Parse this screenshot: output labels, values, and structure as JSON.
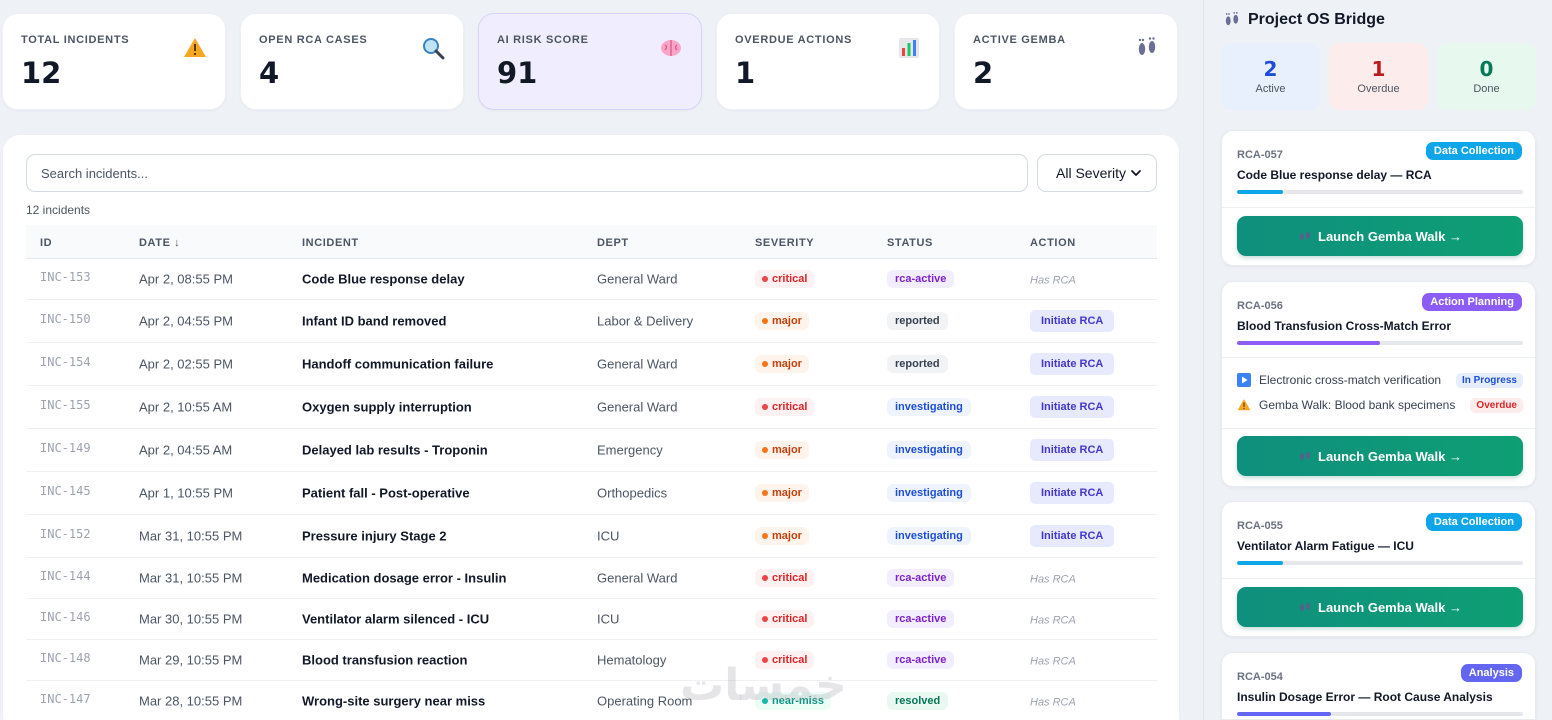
{
  "kpis": [
    {
      "label": "TOTAL INCIDENTS",
      "value": "12",
      "icon": "warning-icon"
    },
    {
      "label": "OPEN RCA CASES",
      "value": "4",
      "icon": "magnifier-icon"
    },
    {
      "label": "AI RISK SCORE",
      "value": "91",
      "icon": "brain-icon"
    },
    {
      "label": "OVERDUE ACTIONS",
      "value": "1",
      "icon": "bar-chart-icon"
    },
    {
      "label": "ACTIVE GEMBA",
      "value": "2",
      "icon": "footprints-icon"
    }
  ],
  "incidents_panel": {
    "search_placeholder": "Search incidents...",
    "severity_filter": "All Severity",
    "count_text": "12 incidents",
    "columns": {
      "id": "ID",
      "date": "DATE ↓",
      "incident": "INCIDENT",
      "dept": "DEPT",
      "severity": "SEVERITY",
      "status": "STATUS",
      "action": "ACTION"
    },
    "rows": [
      {
        "id": "INC-153",
        "date": "Apr 2, 08:55 PM",
        "incident": "Code Blue response delay",
        "dept": "General Ward",
        "severity": "critical",
        "status": "rca-active",
        "action": "Has RCA"
      },
      {
        "id": "INC-150",
        "date": "Apr 2, 04:55 PM",
        "incident": "Infant ID band removed",
        "dept": "Labor & Delivery",
        "severity": "major",
        "status": "reported",
        "action": "Initiate RCA"
      },
      {
        "id": "INC-154",
        "date": "Apr 2, 02:55 PM",
        "incident": "Handoff communication failure",
        "dept": "General Ward",
        "severity": "major",
        "status": "reported",
        "action": "Initiate RCA"
      },
      {
        "id": "INC-155",
        "date": "Apr 2, 10:55 AM",
        "incident": "Oxygen supply interruption",
        "dept": "General Ward",
        "severity": "critical",
        "status": "investigating",
        "action": "Initiate RCA"
      },
      {
        "id": "INC-149",
        "date": "Apr 2, 04:55 AM",
        "incident": "Delayed lab results - Troponin",
        "dept": "Emergency",
        "severity": "major",
        "status": "investigating",
        "action": "Initiate RCA"
      },
      {
        "id": "INC-145",
        "date": "Apr 1, 10:55 PM",
        "incident": "Patient fall - Post-operative",
        "dept": "Orthopedics",
        "severity": "major",
        "status": "investigating",
        "action": "Initiate RCA"
      },
      {
        "id": "INC-152",
        "date": "Mar 31, 10:55 PM",
        "incident": "Pressure injury Stage 2",
        "dept": "ICU",
        "severity": "major",
        "status": "investigating",
        "action": "Initiate RCA"
      },
      {
        "id": "INC-144",
        "date": "Mar 31, 10:55 PM",
        "incident": "Medication dosage error - Insulin",
        "dept": "General Ward",
        "severity": "critical",
        "status": "rca-active",
        "action": "Has RCA"
      },
      {
        "id": "INC-146",
        "date": "Mar 30, 10:55 PM",
        "incident": "Ventilator alarm silenced - ICU",
        "dept": "ICU",
        "severity": "critical",
        "status": "rca-active",
        "action": "Has RCA"
      },
      {
        "id": "INC-148",
        "date": "Mar 29, 10:55 PM",
        "incident": "Blood transfusion reaction",
        "dept": "Hematology",
        "severity": "critical",
        "status": "rca-active",
        "action": "Has RCA"
      },
      {
        "id": "INC-147",
        "date": "Mar 28, 10:55 PM",
        "incident": "Wrong-site surgery near miss",
        "dept": "Operating Room",
        "severity": "near-miss",
        "status": "resolved",
        "action": "Has RCA"
      }
    ]
  },
  "watermark": "خمسات",
  "bridge": {
    "title": "Project OS Bridge",
    "stats": [
      {
        "value": "2",
        "label": "Active"
      },
      {
        "value": "1",
        "label": "Overdue"
      },
      {
        "value": "0",
        "label": "Done"
      }
    ],
    "launch_label": "Launch Gemba Walk →",
    "cards": [
      {
        "id": "RCA-057",
        "badge": "Data Collection",
        "title": "Code Blue response delay — RCA",
        "progress": 0.16
      },
      {
        "id": "RCA-056",
        "badge": "Action Planning",
        "title": "Blood Transfusion Cross-Match Error",
        "progress": 0.5,
        "tasks": [
          {
            "text": "Electronic cross-match verification",
            "status": "In Progress"
          },
          {
            "text": "Gemba Walk: Blood bank specimens",
            "status": "Overdue"
          }
        ]
      },
      {
        "id": "RCA-055",
        "badge": "Data Collection",
        "title": "Ventilator Alarm Fatigue — ICU",
        "progress": 0.16
      },
      {
        "id": "RCA-054",
        "badge": "Analysis",
        "title": "Insulin Dosage Error — Root Cause Analysis",
        "progress": 0.33
      }
    ]
  },
  "colors": {
    "accent": "#6366f1",
    "launch_green": "#0e9f74",
    "critical": "#dc2626",
    "major": "#c2410c"
  }
}
